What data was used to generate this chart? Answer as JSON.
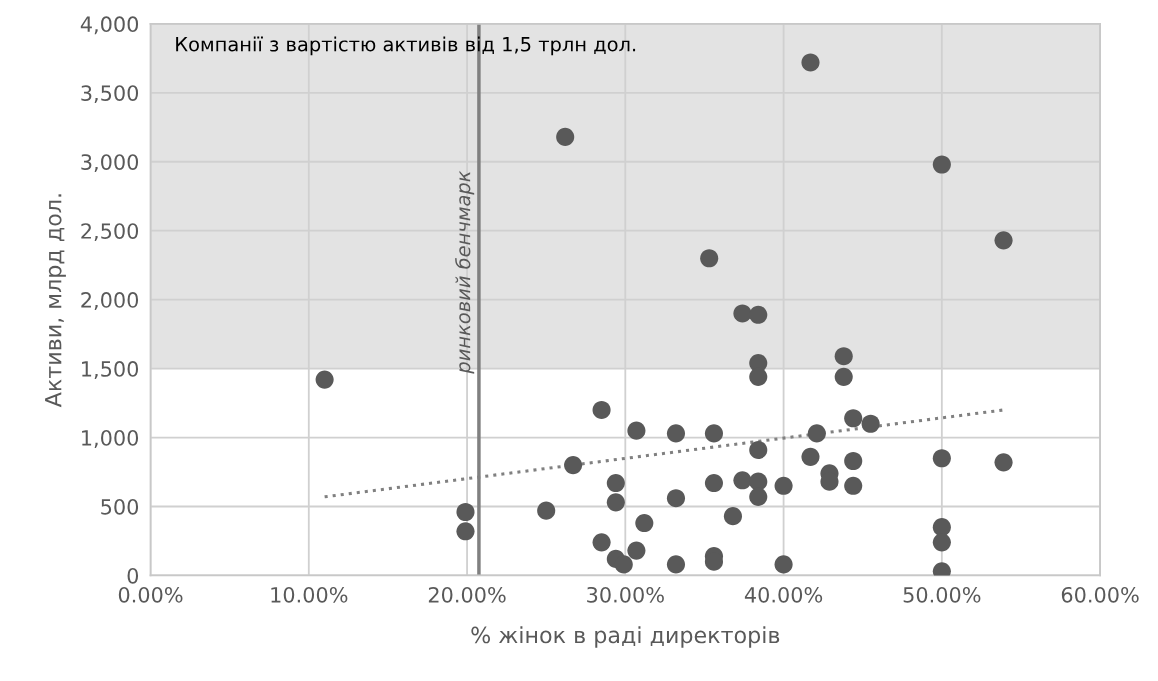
{
  "chart_data": {
    "type": "scatter",
    "xlabel": "% жінок в раді директорів",
    "ylabel": "Активи, млрд дол.",
    "series": [
      {
        "color": "#595959",
        "marker": "circle",
        "x": [
          11.0,
          19.9,
          19.9,
          25.0,
          26.2,
          26.7,
          28.5,
          28.5,
          29.4,
          29.4,
          29.4,
          29.9,
          30.7,
          30.7,
          31.2,
          33.2,
          33.2,
          33.2,
          35.3,
          35.6,
          35.6,
          35.6,
          35.6,
          36.8,
          37.4,
          37.4,
          38.4,
          38.4,
          38.4,
          38.4,
          38.4,
          38.4,
          40.0,
          40.0,
          41.7,
          41.7,
          42.1,
          42.9,
          42.9,
          43.8,
          43.8,
          44.4,
          44.4,
          44.4,
          45.5,
          50.0,
          50.0,
          50.0,
          50.0,
          50.0,
          53.9,
          53.9
        ],
        "values": [
          1420,
          460,
          320,
          470,
          3180,
          800,
          1200,
          240,
          670,
          530,
          120,
          80,
          1050,
          180,
          380,
          1030,
          560,
          80,
          2300,
          1030,
          670,
          140,
          100,
          430,
          1900,
          690,
          1890,
          1540,
          1440,
          910,
          680,
          570,
          650,
          80,
          3720,
          860,
          1030,
          740,
          680,
          1590,
          1440,
          1140,
          830,
          650,
          1100,
          2980,
          850,
          350,
          240,
          30,
          2430,
          820
        ]
      },
      {
        "type": "line",
        "color": "#808080",
        "marker": "none",
        "line_style": "dotted",
        "x": [
          11.0,
          53.9
        ],
        "values": [
          570,
          1200
        ]
      }
    ],
    "xlim": [
      0,
      60
    ],
    "xticks": [
      {
        "value": 0,
        "label": "0.00%"
      },
      {
        "value": 10,
        "label": "10.00%"
      },
      {
        "value": 20,
        "label": "20.00%"
      },
      {
        "value": 30,
        "label": "30.00%"
      },
      {
        "value": 40,
        "label": "40.00%"
      },
      {
        "value": 50,
        "label": "50.00%"
      },
      {
        "value": 60,
        "label": "60.00%"
      }
    ],
    "ylim": [
      0,
      4000
    ],
    "yticks": [
      {
        "value": 0,
        "label": "0"
      },
      {
        "value": 500,
        "label": "500"
      },
      {
        "value": 1000,
        "label": "1,000"
      },
      {
        "value": 1500,
        "label": "1,500"
      },
      {
        "value": 2000,
        "label": "2,000"
      },
      {
        "value": 2500,
        "label": "2,500"
      },
      {
        "value": 3000,
        "label": "3,000"
      },
      {
        "value": 3500,
        "label": "3,500"
      },
      {
        "value": 4000,
        "label": "4,000"
      }
    ],
    "grid": true,
    "ref_lines": [
      {
        "axis": "x",
        "value": 20.75,
        "label": "ринковий бенчмарк",
        "color": "#808080",
        "line_style": "solid"
      }
    ],
    "bands": [
      {
        "axis": "y",
        "from": 1500,
        "to": 4000,
        "label": "Компанії з вартістю активів від 1,5 трлн дол.",
        "color": "#e3e3e3"
      }
    ]
  }
}
